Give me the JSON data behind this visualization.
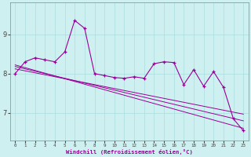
{
  "x": [
    0,
    1,
    2,
    3,
    4,
    5,
    6,
    7,
    8,
    9,
    10,
    11,
    12,
    13,
    14,
    15,
    16,
    17,
    18,
    19,
    20,
    21,
    22,
    23
  ],
  "line1": [
    8.0,
    8.3,
    8.4,
    8.35,
    8.3,
    8.55,
    9.35,
    9.15,
    8.0,
    7.95,
    7.9,
    7.88,
    7.92,
    7.88,
    8.25,
    8.3,
    8.28,
    7.72,
    8.1,
    7.68,
    8.05,
    7.65,
    6.85,
    6.55
  ],
  "trend1": [
    8.22,
    8.15,
    8.08,
    8.01,
    7.94,
    7.87,
    7.8,
    7.73,
    7.66,
    7.59,
    7.52,
    7.45,
    7.38,
    7.31,
    7.24,
    7.17,
    7.1,
    7.03,
    6.96,
    6.89,
    6.82,
    6.75,
    6.68,
    6.61
  ],
  "trend2": [
    8.18,
    8.12,
    8.06,
    8.0,
    7.94,
    7.88,
    7.82,
    7.76,
    7.7,
    7.64,
    7.58,
    7.52,
    7.46,
    7.4,
    7.34,
    7.28,
    7.22,
    7.16,
    7.1,
    7.04,
    6.98,
    6.92,
    6.86,
    6.8
  ],
  "trend3": [
    8.12,
    8.07,
    8.02,
    7.97,
    7.92,
    7.87,
    7.82,
    7.77,
    7.72,
    7.67,
    7.62,
    7.57,
    7.52,
    7.47,
    7.42,
    7.37,
    7.32,
    7.27,
    7.22,
    7.17,
    7.12,
    7.07,
    7.02,
    6.97
  ],
  "line_color": "#990099",
  "bg_color": "#cff0f0",
  "grid_color": "#aadddd",
  "xlabel": "Windchill (Refroidissement éolien,°C)",
  "yticks": [
    7,
    8,
    9
  ],
  "xtick_labels": [
    "0",
    "1",
    "2",
    "3",
    "4",
    "5",
    "6",
    "7",
    "8",
    "9",
    "10",
    "11",
    "12",
    "13",
    "14",
    "15",
    "16",
    "17",
    "18",
    "19",
    "20",
    "21",
    "22",
    "23"
  ],
  "ylim": [
    6.3,
    9.8
  ],
  "xlim": [
    -0.5,
    23.5
  ]
}
